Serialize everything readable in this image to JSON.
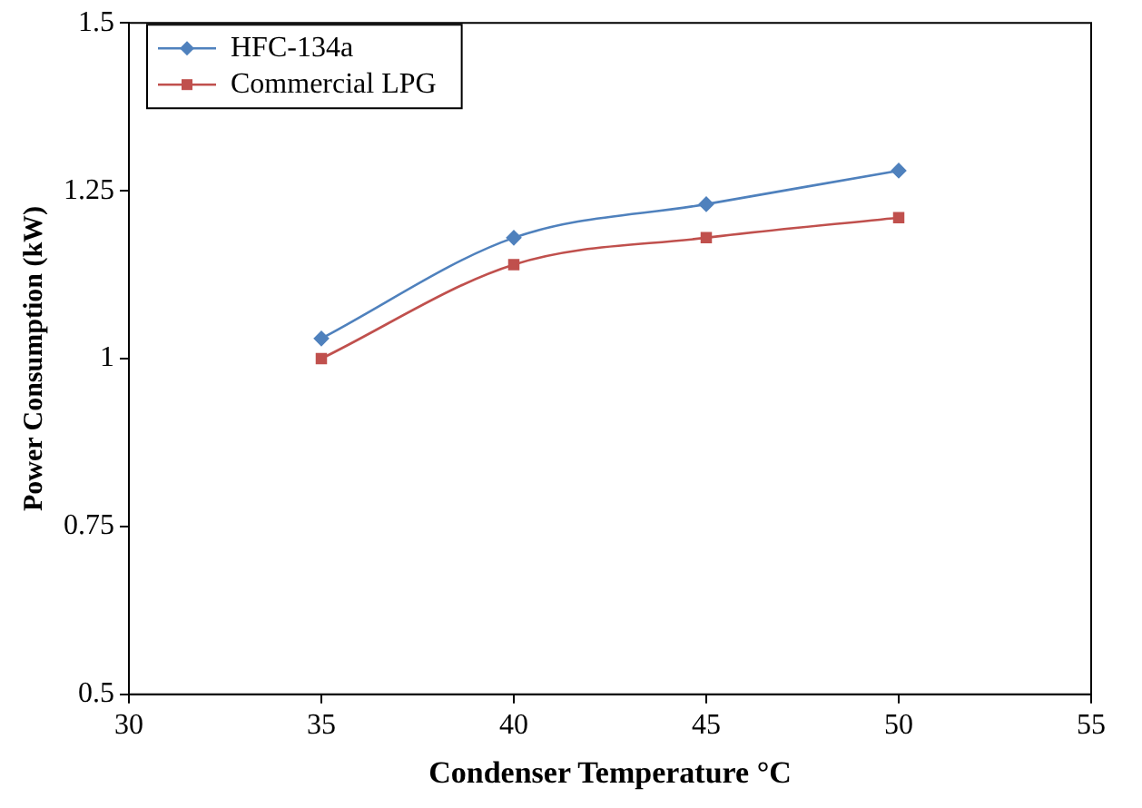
{
  "chart_data": {
    "type": "line",
    "xlabel": "Condenser Temperature °C",
    "ylabel": "Power Consumption (kW)",
    "x": [
      35,
      40,
      45,
      50
    ],
    "series": [
      {
        "name": "HFC-134a",
        "color": "#4f81bd",
        "marker": "diamond",
        "values": [
          1.03,
          1.18,
          1.23,
          1.28
        ]
      },
      {
        "name": "Commercial LPG",
        "color": "#c0504d",
        "marker": "square",
        "values": [
          1.0,
          1.14,
          1.18,
          1.21
        ]
      }
    ],
    "xlim": [
      30,
      55
    ],
    "xticks": [
      30,
      35,
      40,
      45,
      50,
      55
    ],
    "ylim": [
      0.5,
      1.5
    ],
    "yticks": [
      0.5,
      0.75,
      1,
      1.25,
      1.5
    ],
    "grid": false,
    "legend": "top left",
    "line_style": "solid"
  }
}
